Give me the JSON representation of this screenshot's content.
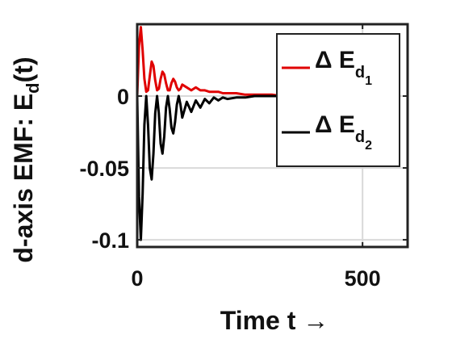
{
  "chart_data": {
    "type": "line",
    "title": "",
    "xlabel": "Time t →",
    "ylabel": "d-axis EMF: E_d(t)",
    "ylabel_main": "d-axis EMF: E",
    "ylabel_sub": "d",
    "ylabel_tail": "(t)",
    "xlim": [
      0,
      600
    ],
    "ylim": [
      -0.105,
      0.05
    ],
    "xticks": [
      0,
      500
    ],
    "xtick_labels": [
      "0",
      "500"
    ],
    "yticks": [
      -0.1,
      -0.05,
      0
    ],
    "ytick_labels": [
      "-0.1",
      "-0.05",
      "0"
    ],
    "grid": true,
    "legend_position": "top-right",
    "series": [
      {
        "name": "Δ E_d1",
        "legend_main": "Δ E",
        "legend_sub": "d",
        "legend_subsub": "1",
        "color": "#e00000",
        "x": [
          0,
          4,
          8,
          12,
          16,
          20,
          24,
          28,
          32,
          36,
          40,
          44,
          48,
          52,
          56,
          60,
          64,
          68,
          72,
          76,
          80,
          84,
          88,
          92,
          96,
          100,
          110,
          120,
          130,
          140,
          150,
          160,
          170,
          180,
          190,
          200,
          220,
          240,
          260,
          280,
          300,
          320,
          340
        ],
        "values": [
          0,
          0.035,
          0.048,
          0.032,
          0.012,
          0.003,
          0.004,
          0.014,
          0.024,
          0.021,
          0.011,
          0.004,
          0.005,
          0.012,
          0.017,
          0.015,
          0.009,
          0.004,
          0.004,
          0.009,
          0.012,
          0.01,
          0.006,
          0.004,
          0.005,
          0.008,
          0.006,
          0.004,
          0.006,
          0.004,
          0.004,
          0.003,
          0.003,
          0.003,
          0.002,
          0.002,
          0.002,
          0.001,
          0.001,
          0.001,
          0.001,
          0.0,
          0.0
        ]
      },
      {
        "name": "Δ E_d2",
        "legend_main": "Δ E",
        "legend_sub": "d",
        "legend_subsub": "2",
        "color": "#000000",
        "x": [
          0,
          4,
          8,
          12,
          16,
          20,
          24,
          28,
          32,
          36,
          40,
          44,
          48,
          52,
          56,
          60,
          64,
          68,
          72,
          76,
          80,
          84,
          88,
          92,
          96,
          100,
          110,
          120,
          130,
          140,
          150,
          160,
          170,
          180,
          190,
          200,
          220,
          240,
          260,
          280,
          300,
          320,
          340
        ],
        "values": [
          0,
          -0.07,
          -0.1,
          -0.068,
          -0.02,
          0.0,
          -0.02,
          -0.05,
          -0.058,
          -0.04,
          -0.012,
          0.0,
          -0.012,
          -0.033,
          -0.04,
          -0.028,
          -0.008,
          0.0,
          -0.009,
          -0.022,
          -0.026,
          -0.018,
          -0.006,
          0.0,
          -0.006,
          -0.015,
          -0.004,
          -0.011,
          -0.003,
          -0.008,
          -0.002,
          -0.005,
          -0.001,
          -0.003,
          -0.001,
          -0.002,
          -0.001,
          -0.001,
          0.0,
          0.0,
          0.0,
          0.0,
          0.0
        ]
      }
    ]
  }
}
